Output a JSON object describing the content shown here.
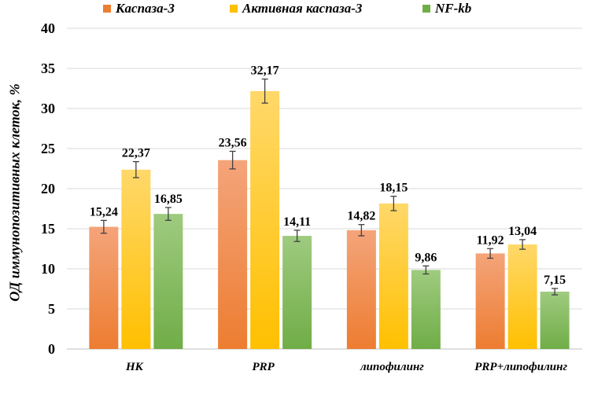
{
  "chart_data": {
    "type": "bar",
    "title": "",
    "xlabel": "",
    "ylabel": "ОД иммунопозитивных клеток, %",
    "ylim": [
      0,
      40
    ],
    "yticks": [
      0,
      5,
      10,
      15,
      20,
      25,
      30,
      35,
      40
    ],
    "categories": [
      "НК",
      "PRP",
      "липофилинг",
      "PRP+липофилинг"
    ],
    "series": [
      {
        "name": "Каспаза-3",
        "color": "#ED7D31",
        "values": [
          15.24,
          23.56,
          14.82,
          11.92
        ],
        "labels": [
          "15,24",
          "23,56",
          "14,82",
          "11,92"
        ],
        "errors": [
          0.8,
          1.1,
          0.7,
          0.6
        ]
      },
      {
        "name": "Активная каспаза-3",
        "color": "#FFC000",
        "values": [
          22.37,
          32.17,
          18.15,
          13.04
        ],
        "labels": [
          "22,37",
          "32,17",
          "18,15",
          "13,04"
        ],
        "errors": [
          1.0,
          1.5,
          0.9,
          0.6
        ]
      },
      {
        "name": "NF-kb",
        "color": "#70AD47",
        "values": [
          16.85,
          14.11,
          9.86,
          7.15
        ],
        "labels": [
          "16,85",
          "14,11",
          "9,86",
          "7,15"
        ],
        "errors": [
          0.8,
          0.7,
          0.5,
          0.4
        ]
      }
    ],
    "grid": true,
    "legend_position": "top"
  }
}
